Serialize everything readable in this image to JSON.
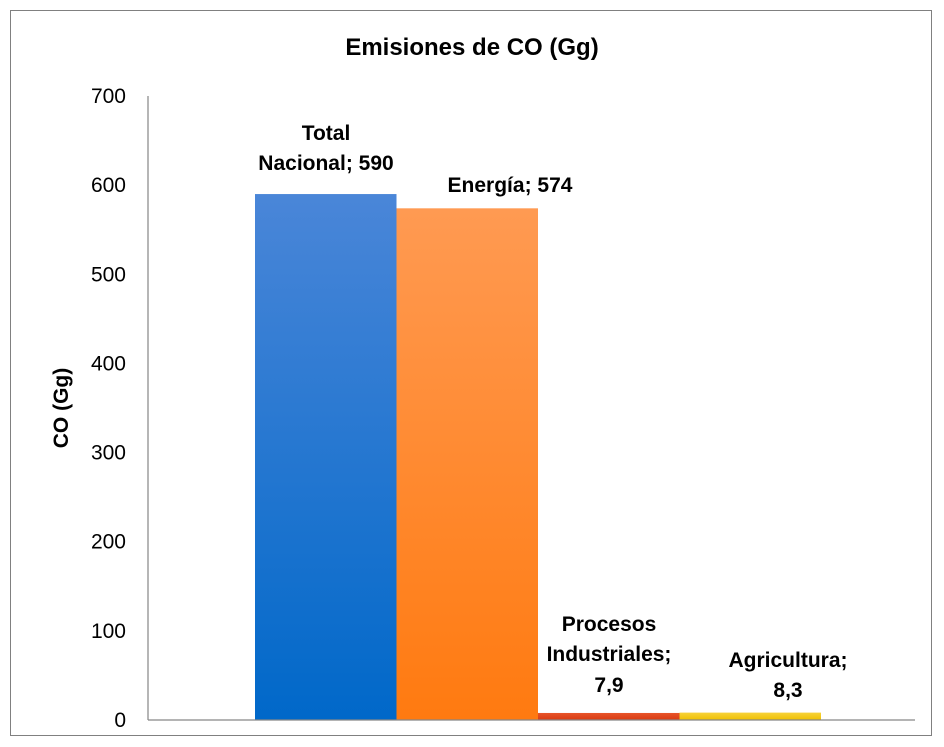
{
  "chart_data": {
    "type": "bar",
    "title": "Emisiones de CO (Gg)",
    "xlabel": "",
    "ylabel": "CO (Gg)",
    "ylim": [
      0,
      700
    ],
    "yticks": [
      "0",
      "100",
      "200",
      "300",
      "400",
      "500",
      "600",
      "700"
    ],
    "grid": false,
    "legend": "none",
    "categories": [
      "Total Nacional",
      "Energía",
      "Procesos Industriales",
      "Agricultura"
    ],
    "values": [
      590,
      574,
      7.9,
      8.3
    ],
    "data_labels": [
      [
        "Total",
        "Nacional; 590"
      ],
      [
        "Energía; 574"
      ],
      [
        "Procesos",
        "Industriales;",
        "7,9"
      ],
      [
        "Agricultura;",
        "8,3"
      ]
    ],
    "colors": [
      "#1f77d4",
      "#ff8a2a",
      "#e0441c",
      "#f2c400"
    ]
  }
}
